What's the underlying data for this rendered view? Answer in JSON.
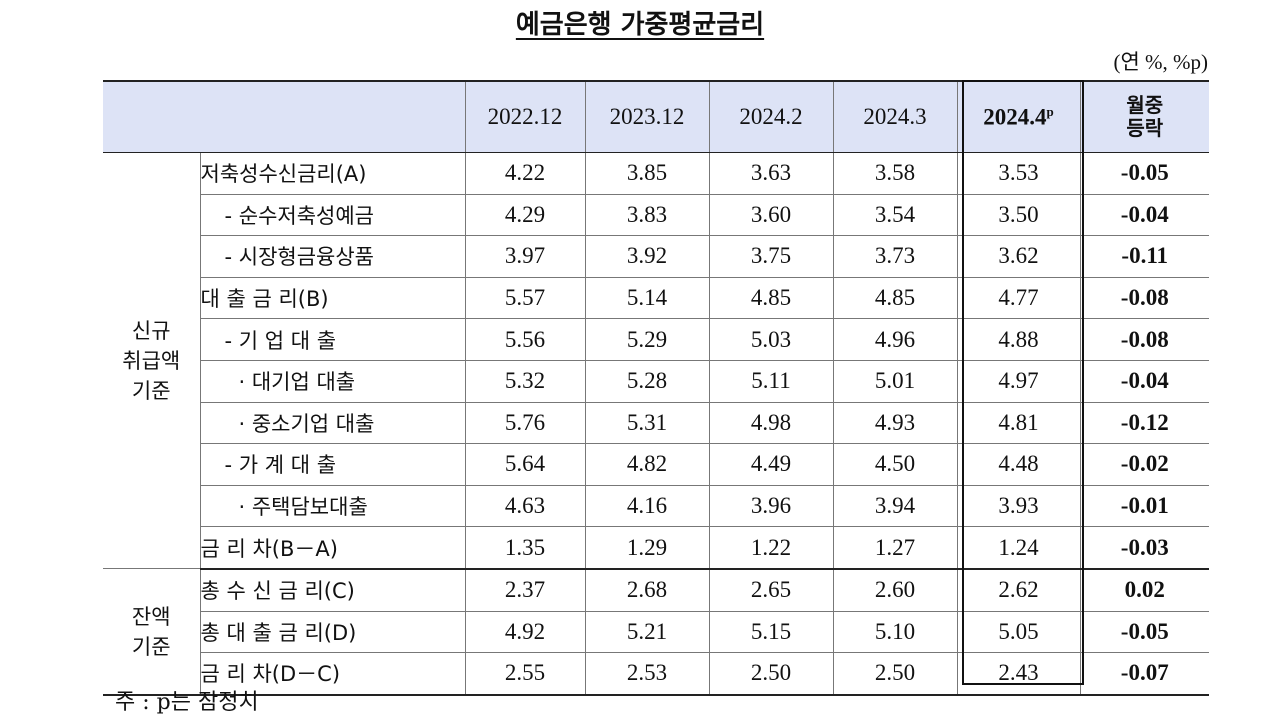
{
  "title": "예금은행 가중평균금리",
  "unit": "(연 %, %p)",
  "columns": [
    "2022.12",
    "2023.12",
    "2024.2",
    "2024.3",
    "2024.4",
    "월중등락"
  ],
  "column_sup": "p",
  "change_header": [
    "월중",
    "등락"
  ],
  "groups": {
    "new": [
      "신규",
      "취급액",
      "기준"
    ],
    "balance": [
      "잔액",
      "기준"
    ]
  },
  "rows": [
    {
      "label": "저축성수신금리(A)",
      "values": [
        "4.22",
        "3.85",
        "3.63",
        "3.58",
        "3.53"
      ],
      "change": "-0.05"
    },
    {
      "label": "- 순수저축성예금",
      "values": [
        "4.29",
        "3.83",
        "3.60",
        "3.54",
        "3.50"
      ],
      "change": "-0.04"
    },
    {
      "label": "- 시장형금융상품",
      "values": [
        "3.97",
        "3.92",
        "3.75",
        "3.73",
        "3.62"
      ],
      "change": "-0.11"
    },
    {
      "label": "대 출 금 리(B)",
      "values": [
        "5.57",
        "5.14",
        "4.85",
        "4.85",
        "4.77"
      ],
      "change": "-0.08"
    },
    {
      "label": "- 기 업 대 출",
      "values": [
        "5.56",
        "5.29",
        "5.03",
        "4.96",
        "4.88"
      ],
      "change": "-0.08"
    },
    {
      "label": "· 대기업 대출",
      "values": [
        "5.32",
        "5.28",
        "5.11",
        "5.01",
        "4.97"
      ],
      "change": "-0.04"
    },
    {
      "label": "· 중소기업 대출",
      "values": [
        "5.76",
        "5.31",
        "4.98",
        "4.93",
        "4.81"
      ],
      "change": "-0.12"
    },
    {
      "label": "- 가 계 대 출",
      "values": [
        "5.64",
        "4.82",
        "4.49",
        "4.50",
        "4.48"
      ],
      "change": "-0.02"
    },
    {
      "label": "· 주택담보대출",
      "values": [
        "4.63",
        "4.16",
        "3.96",
        "3.94",
        "3.93"
      ],
      "change": "-0.01"
    },
    {
      "label": "금 리 차(B－A)",
      "values": [
        "1.35",
        "1.29",
        "1.22",
        "1.27",
        "1.24"
      ],
      "change": "-0.03"
    },
    {
      "label": "총 수 신 금 리(C)",
      "values": [
        "2.37",
        "2.68",
        "2.65",
        "2.60",
        "2.62"
      ],
      "change": "0.02"
    },
    {
      "label": "총 대 출 금 리(D)",
      "values": [
        "4.92",
        "5.21",
        "5.15",
        "5.10",
        "5.05"
      ],
      "change": "-0.05"
    },
    {
      "label": "금 리 차(D－C)",
      "values": [
        "2.55",
        "2.53",
        "2.50",
        "2.50",
        "2.43"
      ],
      "change": "-0.07"
    }
  ],
  "footnote": "주 : p는 잠정치"
}
